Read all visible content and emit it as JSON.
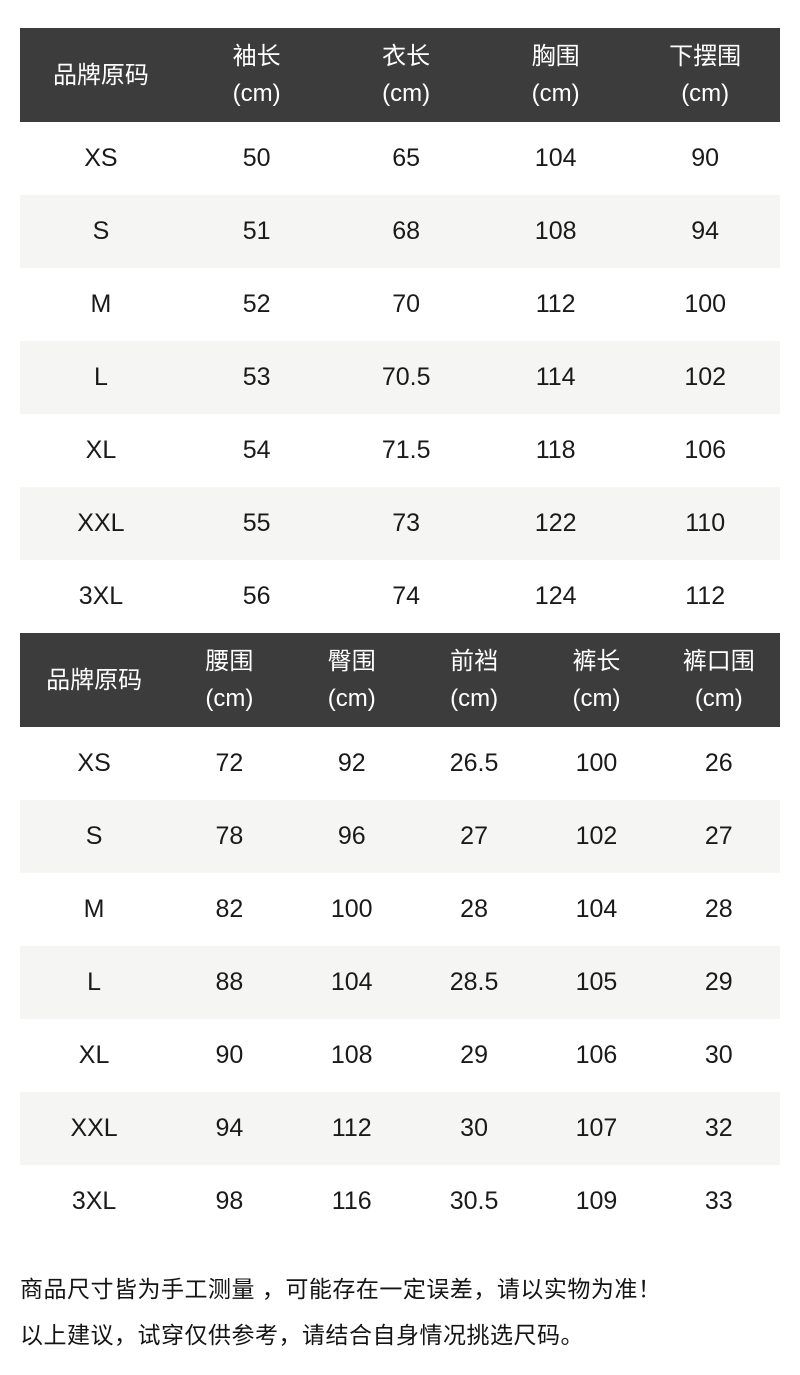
{
  "colors": {
    "header_bg": "#3c3c3c",
    "header_text": "#ffffff",
    "stripe_bg": "#f5f5f3",
    "body_text": "#1a1a1a",
    "footer_text": "#141414"
  },
  "tables": [
    {
      "name": "tops-size-table",
      "headers": [
        {
          "label": "品牌原码",
          "unit": ""
        },
        {
          "label": "袖长",
          "unit": "(cm)"
        },
        {
          "label": "衣长",
          "unit": "(cm)"
        },
        {
          "label": "胸围",
          "unit": "(cm)"
        },
        {
          "label": "下摆围",
          "unit": "(cm)"
        }
      ],
      "rows": [
        [
          "XS",
          "50",
          "65",
          "104",
          "90"
        ],
        [
          "S",
          "51",
          "68",
          "108",
          "94"
        ],
        [
          "M",
          "52",
          "70",
          "112",
          "100"
        ],
        [
          "L",
          "53",
          "70.5",
          "114",
          "102"
        ],
        [
          "XL",
          "54",
          "71.5",
          "118",
          "106"
        ],
        [
          "XXL",
          "55",
          "73",
          "122",
          "110"
        ],
        [
          "3XL",
          "56",
          "74",
          "124",
          "112"
        ]
      ]
    },
    {
      "name": "bottoms-size-table",
      "headers": [
        {
          "label": "品牌原码",
          "unit": ""
        },
        {
          "label": "腰围",
          "unit": "(cm)"
        },
        {
          "label": "臀围",
          "unit": "(cm)"
        },
        {
          "label": "前裆",
          "unit": "(cm)"
        },
        {
          "label": "裤长",
          "unit": "(cm)"
        },
        {
          "label": "裤口围",
          "unit": "(cm)"
        }
      ],
      "rows": [
        [
          "XS",
          "72",
          "92",
          "26.5",
          "100",
          "26"
        ],
        [
          "S",
          "78",
          "96",
          "27",
          "102",
          "27"
        ],
        [
          "M",
          "82",
          "100",
          "28",
          "104",
          "28"
        ],
        [
          "L",
          "88",
          "104",
          "28.5",
          "105",
          "29"
        ],
        [
          "XL",
          "90",
          "108",
          "29",
          "106",
          "30"
        ],
        [
          "XXL",
          "94",
          "112",
          "30",
          "107",
          "32"
        ],
        [
          "3XL",
          "98",
          "116",
          "30.5",
          "109",
          "33"
        ]
      ]
    }
  ],
  "footer": {
    "line1": "商品尺寸皆为手工测量 ，可能存在一定误差，请以实物为准！",
    "line2": "以上建议，试穿仅供参考，请结合自身情况挑选尺码。"
  }
}
